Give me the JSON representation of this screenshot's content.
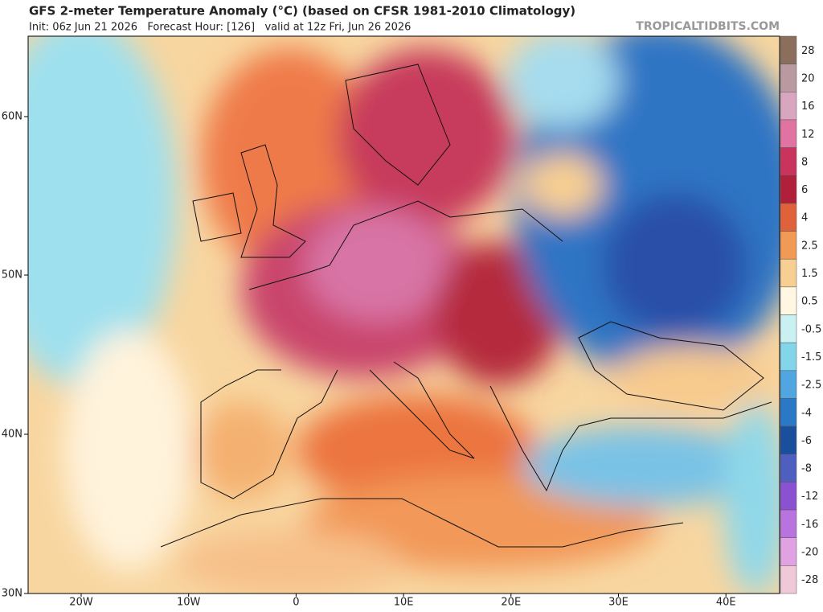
{
  "header": {
    "title": "GFS 2-meter Temperature Anomaly (°C) (based on CFSR 1981-2010 Climatology)",
    "subtitle": "Init: 06z Jun 21 2026   Forecast Hour: [126]   valid at 12z Fri, Jun 26 2026",
    "site": "TROPICALTIDBITS.COM"
  },
  "map": {
    "lat_labels": [
      "60N",
      "50N",
      "40N",
      "30N"
    ],
    "lon_labels": [
      "20W",
      "10W",
      "0",
      "10E",
      "20E",
      "30E",
      "40E"
    ]
  },
  "colorbar": {
    "levels": [
      {
        "label": 28,
        "color": "#8c6e5c"
      },
      {
        "label": 20,
        "color": "#b89aa0"
      },
      {
        "label": 16,
        "color": "#d9a6c0"
      },
      {
        "label": 12,
        "color": "#e173a3"
      },
      {
        "label": 8,
        "color": "#c9345f"
      },
      {
        "label": 6,
        "color": "#b1203a"
      },
      {
        "label": 4,
        "color": "#e0623a"
      },
      {
        "label": 2.5,
        "color": "#f19a55"
      },
      {
        "label": 1.5,
        "color": "#f8cf92"
      },
      {
        "label": 0.5,
        "color": "#fff7e2"
      },
      {
        "label": -0.5,
        "color": "#c9f1f1"
      },
      {
        "label": -1.5,
        "color": "#83d6ea"
      },
      {
        "label": -2.5,
        "color": "#4fa6e0"
      },
      {
        "label": -4,
        "color": "#2a78c6"
      },
      {
        "label": -6,
        "color": "#1a4f9e"
      },
      {
        "label": -8,
        "color": "#4f5fc0"
      },
      {
        "label": -12,
        "color": "#8a52d0"
      },
      {
        "label": -16,
        "color": "#b873de"
      },
      {
        "label": -20,
        "color": "#e0a2e2"
      },
      {
        "label": -28,
        "color": "#f0c9d9"
      }
    ]
  }
}
